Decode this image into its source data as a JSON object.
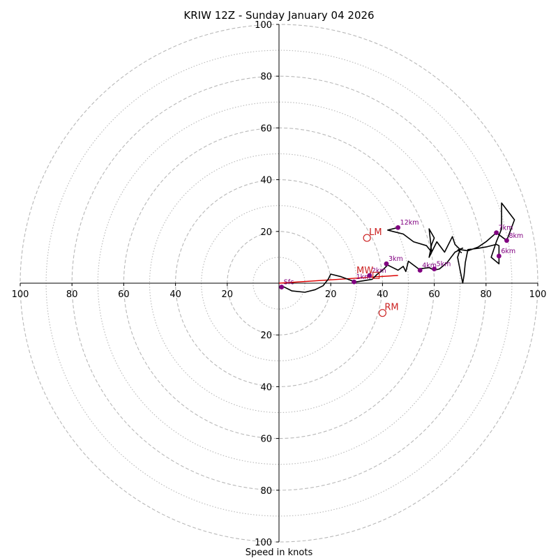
{
  "chart_data": {
    "type": "hodograph",
    "title": "KRIW 12Z - Sunday January 04 2026",
    "xlabel": "Speed in knots",
    "range": [
      0,
      100
    ],
    "ring_step_dashed": 20,
    "ring_step_dotted": 10,
    "x_tick_labels": [
      "100",
      "80",
      "60",
      "40",
      "20",
      "20",
      "40",
      "60",
      "80",
      "100"
    ],
    "x_tick_values": [
      -100,
      -80,
      -60,
      -40,
      -20,
      20,
      40,
      60,
      80,
      100
    ],
    "y_tick_labels": [
      "100",
      "80",
      "60",
      "40",
      "20",
      "20",
      "40",
      "60",
      "80",
      "100"
    ],
    "y_tick_values": [
      100,
      80,
      60,
      40,
      20,
      -20,
      -40,
      -60,
      -80,
      -100
    ],
    "trace": [
      [
        1,
        -1
      ],
      [
        5,
        -3
      ],
      [
        10,
        -3.5
      ],
      [
        14,
        -2.5
      ],
      [
        17,
        -1
      ],
      [
        19,
        1.5
      ],
      [
        20,
        3.5
      ],
      [
        24,
        2.5
      ],
      [
        28,
        1
      ],
      [
        30,
        0.5
      ],
      [
        33,
        1
      ],
      [
        36,
        1.5
      ],
      [
        38,
        3.5
      ],
      [
        40,
        5
      ],
      [
        42,
        7
      ],
      [
        44,
        6
      ],
      [
        46,
        5
      ],
      [
        48,
        6.5
      ],
      [
        49,
        4.5
      ],
      [
        50,
        8.5
      ],
      [
        54,
        5.5
      ],
      [
        58,
        6
      ],
      [
        60,
        5
      ],
      [
        62,
        5.5
      ],
      [
        65,
        8
      ],
      [
        68,
        12
      ],
      [
        70,
        13
      ],
      [
        69,
        10
      ],
      [
        71,
        0
      ],
      [
        71.5,
        3
      ],
      [
        72,
        8
      ],
      [
        73,
        13
      ],
      [
        77,
        13.5
      ],
      [
        80,
        14
      ],
      [
        84,
        15
      ],
      [
        85,
        14.5
      ],
      [
        85,
        11
      ],
      [
        85,
        7.5
      ],
      [
        82,
        10
      ],
      [
        84,
        16
      ],
      [
        85,
        18.5
      ],
      [
        86,
        21
      ],
      [
        86,
        31
      ],
      [
        91,
        24.5
      ],
      [
        88,
        16.5
      ],
      [
        84,
        19.5
      ],
      [
        80,
        16
      ],
      [
        77,
        14
      ],
      [
        73,
        12.5
      ],
      [
        70,
        13
      ],
      [
        68,
        15
      ],
      [
        67,
        18
      ],
      [
        64,
        12
      ],
      [
        61,
        16
      ],
      [
        58,
        10
      ],
      [
        59,
        15
      ],
      [
        60,
        17.5
      ],
      [
        58,
        21
      ],
      [
        59,
        12
      ],
      [
        57,
        14.5
      ],
      [
        52,
        16
      ],
      [
        48,
        19
      ],
      [
        44,
        20
      ],
      [
        42,
        20.5
      ],
      [
        46,
        21.5
      ]
    ],
    "height_points": [
      {
        "label": "Sfc",
        "u": 1,
        "v": -1.5
      },
      {
        "label": "1km",
        "u": 29,
        "v": 0.5
      },
      {
        "label": "2km",
        "u": 35,
        "v": 3
      },
      {
        "label": "3km",
        "u": 41.5,
        "v": 7.5
      },
      {
        "label": "4km",
        "u": 54.5,
        "v": 5
      },
      {
        "label": "5km",
        "u": 60,
        "v": 5.5
      },
      {
        "label": "6km",
        "u": 85,
        "v": 10.5
      },
      {
        "label": "7km",
        "u": 84,
        "v": 19.5
      },
      {
        "label": "8km",
        "u": 88,
        "v": 16.5
      },
      {
        "label": "12km",
        "u": 46,
        "v": 21.5
      }
    ],
    "storm_motions": [
      {
        "label": "LM",
        "u": 34,
        "v": 17.5,
        "marker": "circle"
      },
      {
        "label": "MW",
        "u": 37.5,
        "v": 3,
        "marker": "square"
      },
      {
        "label": "RM",
        "u": 40,
        "v": -11.5,
        "marker": "circle"
      }
    ],
    "shear_vector": {
      "from": [
        0,
        0
      ],
      "to": [
        46,
        3
      ]
    }
  },
  "colors": {
    "trace": "#000000",
    "height_points": "#800080",
    "storm_motion": "#cc2222",
    "shear_vector": "#dd0000",
    "grid": "#b8b8b8"
  }
}
